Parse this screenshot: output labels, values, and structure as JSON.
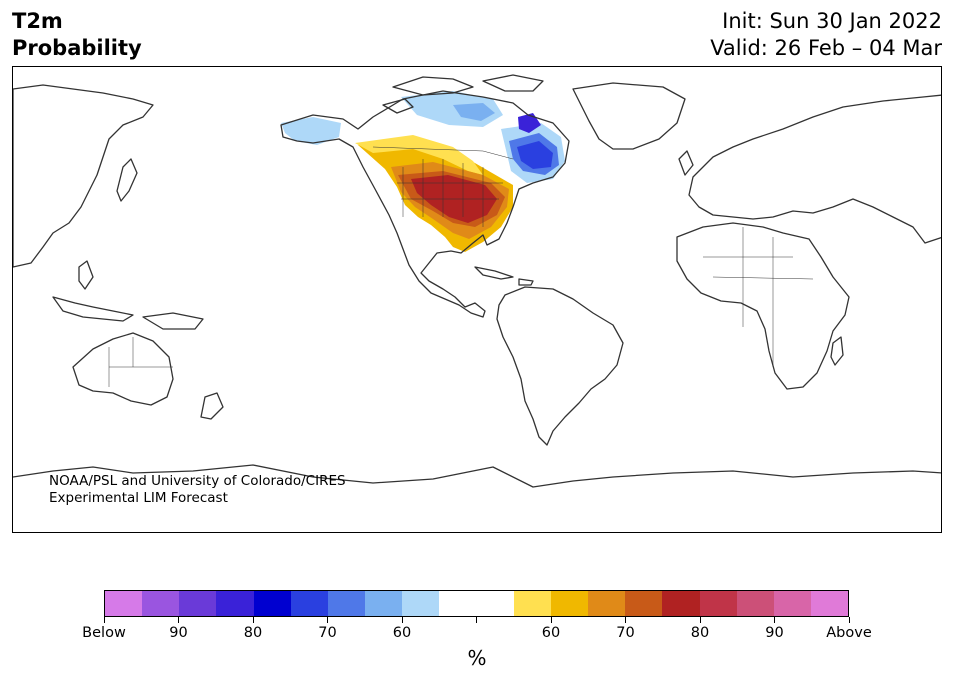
{
  "title": {
    "variable": "T2m",
    "subtitle": "Probability",
    "init": "Init: Sun 30 Jan 2022",
    "valid": "Valid: 26 Feb – 04 Mar"
  },
  "credit": {
    "line1": "NOAA/PSL and University of Colorado/CIRES",
    "line2": "Experimental LIM Forecast"
  },
  "colorbar": {
    "unit_label": "%",
    "colors": [
      "#d67ae8",
      "#9a55e0",
      "#6a3ad8",
      "#3a22d8",
      "#0000d0",
      "#2a40e0",
      "#4f78e8",
      "#7ab0f0",
      "#aed8f8",
      "#ffffff",
      "#ffffff",
      "#ffe050",
      "#f0b800",
      "#e08a18",
      "#c85a18",
      "#b02222",
      "#c03448",
      "#cc5078",
      "#d865a8",
      "#e07ad8"
    ],
    "tick_labels": [
      "Below",
      "90",
      "80",
      "70",
      "60",
      "",
      "",
      "60",
      "70",
      "80",
      "90",
      "Above"
    ]
  },
  "map": {
    "land_stroke": "#333333",
    "anomalies": [
      {
        "region": "central-us",
        "category": "above",
        "level": "80"
      },
      {
        "region": "western-us",
        "category": "above",
        "level": "70"
      },
      {
        "region": "canada-prairies",
        "category": "above",
        "level": "60"
      },
      {
        "region": "quebec-labrador",
        "category": "below",
        "level": "80"
      },
      {
        "region": "alaska",
        "category": "below",
        "level": "60"
      },
      {
        "region": "arctic-canada",
        "category": "below",
        "level": "60"
      }
    ]
  }
}
